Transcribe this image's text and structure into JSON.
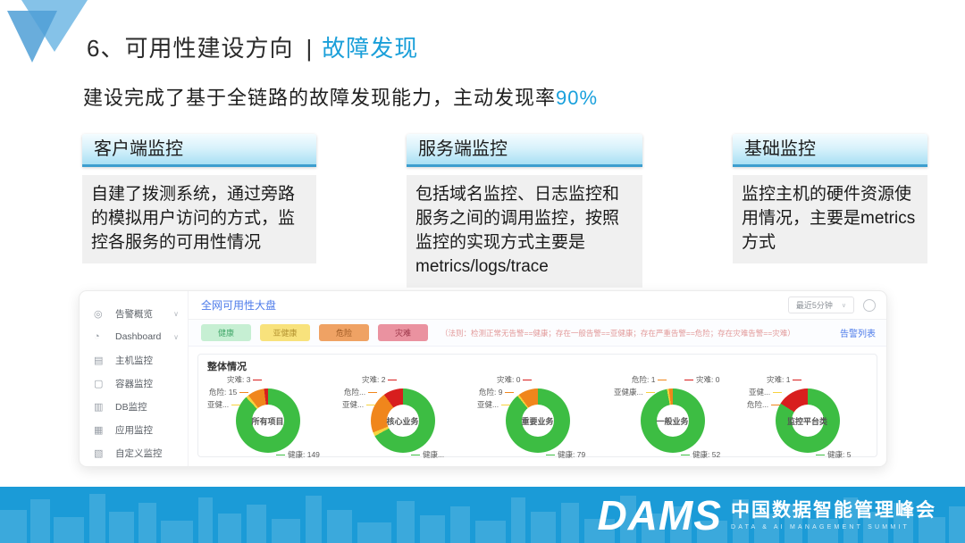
{
  "slide": {
    "title_main": "6、可用性建设方向",
    "title_divider": "|",
    "title_highlight": "故障发现",
    "subtitle_prefix": "建设完成了基于全链路的故障发现能力，主动发现率",
    "subtitle_highlight": "90%"
  },
  "columns": [
    {
      "header": "客户端监控",
      "body": "自建了拨测系统，通过旁路的模拟用户访问的方式，监控各服务的可用性情况"
    },
    {
      "header": "服务端监控",
      "body": "包括域名监控、日志监控和服务之间的调用监控，按照监控的实现方式主要是metrics/logs/trace"
    },
    {
      "header": "基础监控",
      "body": "监控主机的硬件资源使用情况，主要是metrics方式"
    }
  ],
  "dashboard": {
    "sidebar": {
      "items": [
        {
          "label": "告警概览",
          "icon": "alarm-icon",
          "chevron": true
        },
        {
          "label": "Dashboard",
          "icon": "dashboard-icon",
          "chevron": true
        },
        {
          "label": "主机监控",
          "icon": "host-icon",
          "chevron": false
        },
        {
          "label": "容器监控",
          "icon": "container-icon",
          "chevron": false
        },
        {
          "label": "DB监控",
          "icon": "db-icon",
          "chevron": false
        },
        {
          "label": "应用监控",
          "icon": "app-icon",
          "chevron": false
        },
        {
          "label": "自定义监控",
          "icon": "custom-icon",
          "chevron": false
        }
      ]
    },
    "header": {
      "title": "全网可用性大盘",
      "time_select": "最近5分钟",
      "refresh_icon": "refresh-icon"
    },
    "badges": [
      {
        "label": "健康",
        "bg": "#c6efd3",
        "color": "#44a96c"
      },
      {
        "label": "亚健康",
        "bg": "#f8e27c",
        "color": "#b3922f"
      },
      {
        "label": "危险",
        "bg": "#efa264",
        "color": "#9e5a23"
      },
      {
        "label": "灾难",
        "bg": "#ea92a0",
        "color": "#993346"
      }
    ],
    "legend_note": "（法则：检测正常无告警==健康；存在一般告警==亚健康；存在严重告警==危险；存在灾难告警==灾难）",
    "alarm_list_link": "告警列表"
  },
  "chart_data": {
    "type": "pie",
    "note": "five donut charts, status ring share estimated from pixels",
    "section_title": "整体情况",
    "status_colors": {
      "健康": "#3dbd43",
      "亚健康": "#f7d33e",
      "危险": "#f0861c",
      "灾难": "#d81e1e"
    },
    "donuts": [
      {
        "center": "所有项目",
        "labels": [
          {
            "text": "灾难: 3",
            "pos": "tl1",
            "status": "灾难"
          },
          {
            "text": "危险: 15",
            "pos": "tl2",
            "status": "危险"
          },
          {
            "text": "亚健...",
            "pos": "tl3",
            "status": "亚健康"
          },
          {
            "text": "健康: 149",
            "pos": "br",
            "status": "健康"
          }
        ],
        "segments": [
          {
            "status": "健康",
            "pct": 88
          },
          {
            "status": "亚健康",
            "pct": 1.5
          },
          {
            "status": "危险",
            "pct": 8.5
          },
          {
            "status": "灾难",
            "pct": 2
          }
        ]
      },
      {
        "center": "核心业务",
        "labels": [
          {
            "text": "灾难: 2",
            "pos": "tl1",
            "status": "灾难"
          },
          {
            "text": "危险...",
            "pos": "tl2",
            "status": "危险"
          },
          {
            "text": "亚健...",
            "pos": "tl3",
            "status": "亚健康"
          },
          {
            "text": "健康...",
            "pos": "br",
            "status": "健康"
          }
        ],
        "segments": [
          {
            "status": "健康",
            "pct": 67
          },
          {
            "status": "亚健康",
            "pct": 2
          },
          {
            "status": "危险",
            "pct": 21
          },
          {
            "status": "灾难",
            "pct": 10
          }
        ]
      },
      {
        "center": "重要业务",
        "labels": [
          {
            "text": "灾难: 0",
            "pos": "tl1",
            "status": "灾难"
          },
          {
            "text": "危险: 9",
            "pos": "tl2",
            "status": "危险"
          },
          {
            "text": "亚健...",
            "pos": "tl3",
            "status": "亚健康"
          },
          {
            "text": "健康: 79",
            "pos": "br",
            "status": "健康"
          }
        ],
        "segments": [
          {
            "status": "健康",
            "pct": 89
          },
          {
            "status": "亚健康",
            "pct": 1
          },
          {
            "status": "危险",
            "pct": 10
          },
          {
            "status": "灾难",
            "pct": 0
          }
        ]
      },
      {
        "center": "一般业务",
        "labels": [
          {
            "text": "危险: 1",
            "pos": "tl1",
            "status": "危险"
          },
          {
            "text": "灾难: 0",
            "pos": "tr",
            "status": "灾难"
          },
          {
            "text": "亚健康...",
            "pos": "tl2",
            "status": "亚健康"
          },
          {
            "text": "健康: 52",
            "pos": "br",
            "status": "健康"
          }
        ],
        "segments": [
          {
            "status": "健康",
            "pct": 97
          },
          {
            "status": "亚健康",
            "pct": 1
          },
          {
            "status": "危险",
            "pct": 2
          },
          {
            "status": "灾难",
            "pct": 0
          }
        ]
      },
      {
        "center": "监控平台类",
        "labels": [
          {
            "text": "灾难: 1",
            "pos": "tl1",
            "status": "灾难"
          },
          {
            "text": "亚健...",
            "pos": "tl2",
            "status": "亚健康"
          },
          {
            "text": "危险...",
            "pos": "tl3",
            "status": "危险"
          },
          {
            "text": "健康: 5",
            "pos": "br",
            "status": "健康"
          }
        ],
        "segments": [
          {
            "status": "健康",
            "pct": 84
          },
          {
            "status": "亚健康",
            "pct": 0
          },
          {
            "status": "危险",
            "pct": 0
          },
          {
            "status": "灾难",
            "pct": 16
          }
        ]
      }
    ]
  },
  "footer": {
    "logo": "DAMS",
    "title_cn": "中国数据智能管理峰会",
    "subtitle_en": "DATA & AI MANAGEMENT SUMMIT"
  },
  "colors": {
    "accent_blue": "#1a9fd9",
    "link_blue": "#4d7bea",
    "footer_blue": "#1b9bd7",
    "header_bar_border": "#3d9ecf",
    "legend_note_red": "#e29a9a"
  }
}
